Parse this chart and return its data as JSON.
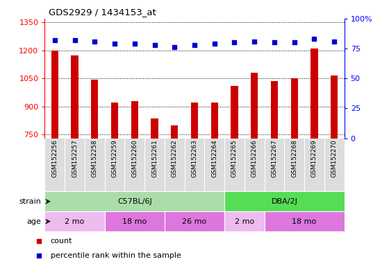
{
  "title": "GDS2929 / 1434153_at",
  "samples": [
    "GSM152256",
    "GSM152257",
    "GSM152258",
    "GSM152259",
    "GSM152260",
    "GSM152261",
    "GSM152262",
    "GSM152263",
    "GSM152264",
    "GSM152265",
    "GSM152266",
    "GSM152267",
    "GSM152268",
    "GSM152269",
    "GSM152270"
  ],
  "counts": [
    1200,
    1175,
    1045,
    920,
    930,
    835,
    800,
    920,
    920,
    1010,
    1080,
    1035,
    1050,
    1210,
    1065
  ],
  "percentiles": [
    82,
    82,
    81,
    79,
    79,
    78,
    76,
    78,
    79,
    80,
    81,
    80,
    80,
    83,
    81
  ],
  "bar_color": "#cc0000",
  "dot_color": "#0000cc",
  "ylim_left": [
    730,
    1370
  ],
  "ylim_right": [
    0,
    100
  ],
  "yticks_left": [
    750,
    900,
    1050,
    1200,
    1350
  ],
  "yticks_right": [
    0,
    25,
    50,
    75,
    100
  ],
  "ybase": 730,
  "strain_groups": [
    {
      "label": "C57BL/6J",
      "start": 0,
      "end": 9,
      "color": "#aaeea a"
    },
    {
      "label": "DBA/2J",
      "start": 9,
      "end": 15,
      "color": "#55dd55"
    }
  ],
  "age_groups": [
    {
      "label": "2 mo",
      "start": 0,
      "end": 3,
      "color": "#eebbee"
    },
    {
      "label": "18 mo",
      "start": 3,
      "end": 6,
      "color": "#dd77dd"
    },
    {
      "label": "26 mo",
      "start": 6,
      "end": 9,
      "color": "#dd77dd"
    },
    {
      "label": "2 mo",
      "start": 9,
      "end": 11,
      "color": "#eebbee"
    },
    {
      "label": "18 mo",
      "start": 11,
      "end": 15,
      "color": "#dd77dd"
    }
  ],
  "bg_color": "#ffffff",
  "xtick_bg": "#dddddd",
  "strain_color_1": "#aaddaa",
  "strain_color_2": "#55dd55",
  "age_color_light": "#eebbee",
  "age_color_dark": "#dd77dd"
}
